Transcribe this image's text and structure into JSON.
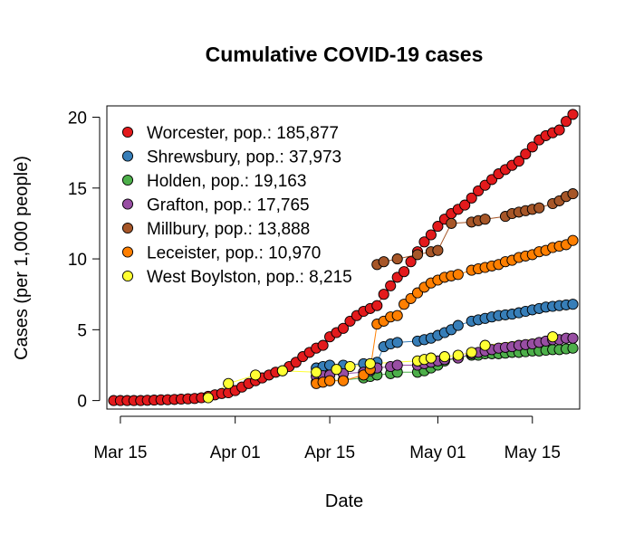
{
  "chart_data": {
    "type": "scatter",
    "title": "Cumulative COVID-19 cases",
    "xlabel": "Date",
    "ylabel": "Cases (per 1,000 people)",
    "x_axis": {
      "type": "date",
      "range": [
        "2020-03-13",
        "2020-05-22"
      ],
      "ticks": [
        {
          "date": "2020-03-15",
          "label": "Mar 15"
        },
        {
          "date": "2020-04-01",
          "label": "Apr 01"
        },
        {
          "date": "2020-04-15",
          "label": "Apr 15"
        },
        {
          "date": "2020-05-01",
          "label": "May 01"
        },
        {
          "date": "2020-05-15",
          "label": "May 15"
        }
      ]
    },
    "y_axis": {
      "range": [
        -0.6,
        20.8
      ],
      "ticks": [
        0,
        5,
        10,
        15,
        20
      ]
    },
    "legend_position": "top-left",
    "series": [
      {
        "name": "Worcester, pop.: 185,877",
        "color": "#E31A1C",
        "points": [
          [
            "2020-03-14",
            0.0
          ],
          [
            "2020-03-15",
            0.0
          ],
          [
            "2020-03-16",
            0.0
          ],
          [
            "2020-03-17",
            0.0
          ],
          [
            "2020-03-18",
            0.0
          ],
          [
            "2020-03-19",
            0.02
          ],
          [
            "2020-03-20",
            0.03
          ],
          [
            "2020-03-21",
            0.05
          ],
          [
            "2020-03-22",
            0.06
          ],
          [
            "2020-03-23",
            0.08
          ],
          [
            "2020-03-24",
            0.1
          ],
          [
            "2020-03-25",
            0.12
          ],
          [
            "2020-03-26",
            0.15
          ],
          [
            "2020-03-27",
            0.2
          ],
          [
            "2020-03-28",
            0.3
          ],
          [
            "2020-03-29",
            0.4
          ],
          [
            "2020-03-30",
            0.5
          ],
          [
            "2020-03-31",
            0.55
          ],
          [
            "2020-04-01",
            0.7
          ],
          [
            "2020-04-02",
            0.95
          ],
          [
            "2020-04-03",
            1.2
          ],
          [
            "2020-04-04",
            1.4
          ],
          [
            "2020-04-05",
            1.6
          ],
          [
            "2020-04-06",
            1.8
          ],
          [
            "2020-04-07",
            2.0
          ],
          [
            "2020-04-08",
            2.1
          ],
          [
            "2020-04-09",
            2.4
          ],
          [
            "2020-04-10",
            2.7
          ],
          [
            "2020-04-11",
            3.1
          ],
          [
            "2020-04-12",
            3.4
          ],
          [
            "2020-04-13",
            3.7
          ],
          [
            "2020-04-14",
            3.9
          ],
          [
            "2020-04-15",
            4.5
          ],
          [
            "2020-04-16",
            4.8
          ],
          [
            "2020-04-17",
            5.1
          ],
          [
            "2020-04-18",
            5.6
          ],
          [
            "2020-04-19",
            6.0
          ],
          [
            "2020-04-20",
            6.3
          ],
          [
            "2020-04-21",
            6.5
          ],
          [
            "2020-04-22",
            6.7
          ],
          [
            "2020-04-23",
            7.5
          ],
          [
            "2020-04-24",
            8.1
          ],
          [
            "2020-04-25",
            8.7
          ],
          [
            "2020-04-26",
            9.1
          ],
          [
            "2020-04-27",
            9.8
          ],
          [
            "2020-04-28",
            10.5
          ],
          [
            "2020-04-29",
            11.2
          ],
          [
            "2020-04-30",
            11.7
          ],
          [
            "2020-05-01",
            12.3
          ],
          [
            "2020-05-02",
            12.8
          ],
          [
            "2020-05-03",
            13.2
          ],
          [
            "2020-05-04",
            13.5
          ],
          [
            "2020-05-05",
            13.8
          ],
          [
            "2020-05-06",
            14.3
          ],
          [
            "2020-05-07",
            14.8
          ],
          [
            "2020-05-08",
            15.2
          ],
          [
            "2020-05-09",
            15.6
          ],
          [
            "2020-05-10",
            16.0
          ],
          [
            "2020-05-11",
            16.3
          ],
          [
            "2020-05-12",
            16.6
          ],
          [
            "2020-05-13",
            16.9
          ],
          [
            "2020-05-14",
            17.4
          ],
          [
            "2020-05-15",
            17.9
          ],
          [
            "2020-05-16",
            18.4
          ],
          [
            "2020-05-17",
            18.7
          ],
          [
            "2020-05-18",
            18.9
          ],
          [
            "2020-05-19",
            19.1
          ],
          [
            "2020-05-20",
            19.7
          ],
          [
            "2020-05-21",
            20.2
          ]
        ]
      },
      {
        "name": "Shrewsbury, pop.: 37,973",
        "color": "#377EB8",
        "points": [
          [
            "2020-04-13",
            2.3
          ],
          [
            "2020-04-14",
            2.4
          ],
          [
            "2020-04-15",
            2.5
          ],
          [
            "2020-04-17",
            2.5
          ],
          [
            "2020-04-20",
            2.6
          ],
          [
            "2020-04-21",
            2.6
          ],
          [
            "2020-04-22",
            2.7
          ],
          [
            "2020-04-23",
            3.8
          ],
          [
            "2020-04-24",
            4.0
          ],
          [
            "2020-04-25",
            4.1
          ],
          [
            "2020-04-28",
            4.2
          ],
          [
            "2020-04-29",
            4.3
          ],
          [
            "2020-04-30",
            4.4
          ],
          [
            "2020-05-01",
            4.6
          ],
          [
            "2020-05-02",
            4.8
          ],
          [
            "2020-05-03",
            5.0
          ],
          [
            "2020-05-04",
            5.3
          ],
          [
            "2020-05-06",
            5.6
          ],
          [
            "2020-05-07",
            5.7
          ],
          [
            "2020-05-08",
            5.8
          ],
          [
            "2020-05-09",
            5.9
          ],
          [
            "2020-05-10",
            6.0
          ],
          [
            "2020-05-11",
            6.05
          ],
          [
            "2020-05-12",
            6.1
          ],
          [
            "2020-05-13",
            6.2
          ],
          [
            "2020-05-14",
            6.3
          ],
          [
            "2020-05-15",
            6.4
          ],
          [
            "2020-05-16",
            6.5
          ],
          [
            "2020-05-17",
            6.6
          ],
          [
            "2020-05-18",
            6.65
          ],
          [
            "2020-05-19",
            6.7
          ],
          [
            "2020-05-20",
            6.75
          ],
          [
            "2020-05-21",
            6.8
          ]
        ]
      },
      {
        "name": "Holden, pop.: 19,163",
        "color": "#4DAF4A",
        "points": [
          [
            "2020-04-13",
            1.3
          ],
          [
            "2020-04-14",
            1.35
          ],
          [
            "2020-04-15",
            1.4
          ],
          [
            "2020-04-17",
            1.45
          ],
          [
            "2020-04-20",
            1.6
          ],
          [
            "2020-04-21",
            1.7
          ],
          [
            "2020-04-22",
            1.8
          ],
          [
            "2020-04-24",
            1.9
          ],
          [
            "2020-04-25",
            2.0
          ],
          [
            "2020-04-28",
            2.0
          ],
          [
            "2020-04-29",
            2.1
          ],
          [
            "2020-04-30",
            2.3
          ],
          [
            "2020-05-01",
            2.5
          ],
          [
            "2020-05-02",
            2.8
          ],
          [
            "2020-05-04",
            3.0
          ],
          [
            "2020-05-06",
            3.2
          ],
          [
            "2020-05-07",
            3.2
          ],
          [
            "2020-05-08",
            3.3
          ],
          [
            "2020-05-09",
            3.3
          ],
          [
            "2020-05-10",
            3.3
          ],
          [
            "2020-05-11",
            3.35
          ],
          [
            "2020-05-12",
            3.4
          ],
          [
            "2020-05-13",
            3.4
          ],
          [
            "2020-05-14",
            3.45
          ],
          [
            "2020-05-15",
            3.5
          ],
          [
            "2020-05-16",
            3.5
          ],
          [
            "2020-05-17",
            3.55
          ],
          [
            "2020-05-18",
            3.6
          ],
          [
            "2020-05-19",
            3.6
          ],
          [
            "2020-05-20",
            3.65
          ],
          [
            "2020-05-21",
            3.7
          ]
        ]
      },
      {
        "name": "Grafton, pop.: 17,765",
        "color": "#984EA3",
        "points": [
          [
            "2020-04-13",
            1.7
          ],
          [
            "2020-04-14",
            1.75
          ],
          [
            "2020-04-15",
            1.8
          ],
          [
            "2020-04-17",
            1.9
          ],
          [
            "2020-04-20",
            2.0
          ],
          [
            "2020-04-21",
            2.1
          ],
          [
            "2020-04-22",
            2.3
          ],
          [
            "2020-04-24",
            2.4
          ],
          [
            "2020-04-25",
            2.5
          ],
          [
            "2020-04-28",
            2.5
          ],
          [
            "2020-04-29",
            2.6
          ],
          [
            "2020-04-30",
            2.7
          ],
          [
            "2020-05-01",
            2.8
          ],
          [
            "2020-05-02",
            2.9
          ],
          [
            "2020-05-04",
            3.0
          ],
          [
            "2020-05-06",
            3.3
          ],
          [
            "2020-05-07",
            3.4
          ],
          [
            "2020-05-08",
            3.5
          ],
          [
            "2020-05-09",
            3.6
          ],
          [
            "2020-05-10",
            3.7
          ],
          [
            "2020-05-11",
            3.75
          ],
          [
            "2020-05-12",
            3.8
          ],
          [
            "2020-05-13",
            3.9
          ],
          [
            "2020-05-14",
            3.95
          ],
          [
            "2020-05-15",
            4.0
          ],
          [
            "2020-05-16",
            4.1
          ],
          [
            "2020-05-17",
            4.2
          ],
          [
            "2020-05-18",
            4.3
          ],
          [
            "2020-05-19",
            4.3
          ],
          [
            "2020-05-20",
            4.4
          ],
          [
            "2020-05-21",
            4.4
          ]
        ]
      },
      {
        "name": "Millbury, pop.: 13,888",
        "color": "#A65628",
        "points": [
          [
            "2020-04-22",
            9.6
          ],
          [
            "2020-04-23",
            9.8
          ],
          [
            "2020-04-25",
            10.0
          ],
          [
            "2020-04-28",
            10.3
          ],
          [
            "2020-04-30",
            10.5
          ],
          [
            "2020-05-01",
            10.6
          ],
          [
            "2020-05-03",
            12.5
          ],
          [
            "2020-05-06",
            12.6
          ],
          [
            "2020-05-07",
            12.7
          ],
          [
            "2020-05-08",
            12.8
          ],
          [
            "2020-05-11",
            13.0
          ],
          [
            "2020-05-12",
            13.2
          ],
          [
            "2020-05-13",
            13.3
          ],
          [
            "2020-05-14",
            13.4
          ],
          [
            "2020-05-15",
            13.5
          ],
          [
            "2020-05-16",
            13.6
          ],
          [
            "2020-05-18",
            13.9
          ],
          [
            "2020-05-19",
            14.1
          ],
          [
            "2020-05-20",
            14.4
          ],
          [
            "2020-05-21",
            14.6
          ]
        ]
      },
      {
        "name": "Leceister, pop.: 10,970",
        "color": "#FF7F00",
        "points": [
          [
            "2020-04-13",
            1.2
          ],
          [
            "2020-04-14",
            1.3
          ],
          [
            "2020-04-15",
            1.4
          ],
          [
            "2020-04-17",
            1.4
          ],
          [
            "2020-04-20",
            1.8
          ],
          [
            "2020-04-21",
            2.2
          ],
          [
            "2020-04-22",
            5.4
          ],
          [
            "2020-04-23",
            5.6
          ],
          [
            "2020-04-24",
            5.9
          ],
          [
            "2020-04-25",
            6.0
          ],
          [
            "2020-04-26",
            6.8
          ],
          [
            "2020-04-27",
            7.2
          ],
          [
            "2020-04-28",
            7.6
          ],
          [
            "2020-04-29",
            8.0
          ],
          [
            "2020-04-30",
            8.3
          ],
          [
            "2020-05-01",
            8.5
          ],
          [
            "2020-05-02",
            8.7
          ],
          [
            "2020-05-03",
            8.8
          ],
          [
            "2020-05-04",
            8.9
          ],
          [
            "2020-05-06",
            9.2
          ],
          [
            "2020-05-07",
            9.3
          ],
          [
            "2020-05-08",
            9.4
          ],
          [
            "2020-05-09",
            9.5
          ],
          [
            "2020-05-10",
            9.6
          ],
          [
            "2020-05-11",
            9.8
          ],
          [
            "2020-05-12",
            9.9
          ],
          [
            "2020-05-13",
            10.1
          ],
          [
            "2020-05-14",
            10.2
          ],
          [
            "2020-05-15",
            10.3
          ],
          [
            "2020-05-16",
            10.5
          ],
          [
            "2020-05-17",
            10.6
          ],
          [
            "2020-05-18",
            10.8
          ],
          [
            "2020-05-19",
            10.9
          ],
          [
            "2020-05-20",
            11.0
          ],
          [
            "2020-05-21",
            11.3
          ]
        ]
      },
      {
        "name": "West Boylston, pop.: 8,215",
        "color": "#FFFF33",
        "points": [
          [
            "2020-03-28",
            0.2
          ],
          [
            "2020-03-31",
            1.2
          ],
          [
            "2020-04-04",
            1.8
          ],
          [
            "2020-04-08",
            2.1
          ],
          [
            "2020-04-13",
            2.0
          ],
          [
            "2020-04-16",
            2.2
          ],
          [
            "2020-04-18",
            2.4
          ],
          [
            "2020-04-21",
            2.6
          ],
          [
            "2020-04-28",
            2.8
          ],
          [
            "2020-04-29",
            2.9
          ],
          [
            "2020-04-30",
            3.0
          ],
          [
            "2020-05-02",
            3.1
          ],
          [
            "2020-05-04",
            3.2
          ],
          [
            "2020-05-06",
            3.4
          ],
          [
            "2020-05-08",
            3.9
          ],
          [
            "2020-05-18",
            4.5
          ]
        ]
      }
    ]
  }
}
